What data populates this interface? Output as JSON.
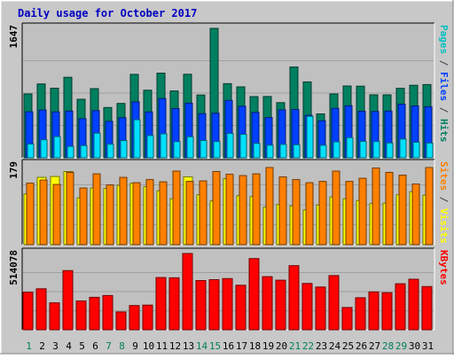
{
  "chart_data": {
    "type": "bar",
    "title": "Daily usage for October 2017",
    "categories": [
      "1",
      "2",
      "3",
      "4",
      "5",
      "6",
      "7",
      "8",
      "9",
      "10",
      "11",
      "12",
      "13",
      "14",
      "15",
      "16",
      "17",
      "18",
      "19",
      "20",
      "21",
      "22",
      "23",
      "24",
      "25",
      "26",
      "27",
      "28",
      "29",
      "30",
      "31"
    ],
    "weekend_days": [
      "1",
      "7",
      "8",
      "14",
      "15",
      "21",
      "22",
      "28",
      "29"
    ],
    "panels": [
      {
        "id": "hits",
        "ymax_label": "1647",
        "ymax": 1647,
        "legend": [
          {
            "text": "Pages",
            "color": "#00c0c0"
          },
          {
            "text": " / ",
            "color": "#404040"
          },
          {
            "text": "Files",
            "color": "#0040ff"
          },
          {
            "text": " / ",
            "color": "#404040"
          },
          {
            "text": "Hits",
            "color": "#008060"
          }
        ],
        "series": [
          {
            "name": "Hits",
            "color": "#008060",
            "values": [
              812,
              940,
              886,
              1024,
              745,
              880,
              640,
              692,
              1061,
              860,
              1077,
              851,
              1063,
              799,
              1647,
              943,
              902,
              778,
              780,
              702,
              1155,
              966,
              558,
              812,
              914,
              911,
              801,
              801,
              884,
              923,
              932
            ]
          },
          {
            "name": "Files",
            "color": "#0040ff",
            "values": [
              585,
              608,
              584,
              595,
              497,
              600,
              464,
              510,
              712,
              583,
              754,
              626,
              695,
              562,
              567,
              730,
              656,
              578,
              512,
              610,
              615,
              540,
              471,
              630,
              662,
              592,
              589,
              595,
              682,
              660,
              650
            ]
          },
          {
            "name": "Pages",
            "color": "#00e0ff",
            "values": [
              175,
              229,
              270,
              144,
              156,
              312,
              173,
              219,
              484,
              283,
              305,
              205,
              267,
              220,
              206,
              309,
              298,
              183,
              160,
              170,
              166,
              528,
              159,
              203,
              256,
              209,
              207,
              188,
              238,
              197,
              187
            ]
          }
        ]
      },
      {
        "id": "visits",
        "ymax_label": "179",
        "ymax": 179,
        "legend": [
          {
            "text": "Sites",
            "color": "#ff8000"
          },
          {
            "text": " / ",
            "color": "#404040"
          },
          {
            "text": "Visits",
            "color": "#ffff00"
          }
        ],
        "series": [
          {
            "name": "Visits",
            "color": "#ffff00",
            "values": [
              114,
              151,
              153,
              164,
              105,
              127,
              126,
              133,
              138,
              130,
              121,
              103,
              152,
              112,
              98,
              148,
              110,
              108,
              84,
              90,
              87,
              78,
              89,
              107,
              103,
              99,
              92,
              93,
              112,
              119,
              111
            ]
          },
          {
            "name": "Sites",
            "color": "#ff8000",
            "values": [
              138,
              145,
              135,
              162,
              127,
              159,
              134,
              151,
              139,
              146,
              141,
              165,
              142,
              143,
              164,
              158,
              155,
              159,
              173,
              152,
              146,
              139,
              142,
              165,
              142,
              149,
              172,
              162,
              156,
              136,
              173
            ]
          }
        ]
      },
      {
        "id": "kbytes",
        "ymax_label": "514078",
        "ymax": 514078,
        "legend": [
          {
            "text": "KBytes",
            "color": "#ff0000"
          }
        ],
        "series": [
          {
            "name": "KBytes",
            "color": "#ff0000",
            "values": [
              253000,
              276000,
              182000,
              399000,
              194000,
              219000,
              231000,
              120000,
              163000,
              166000,
              352000,
              350000,
              514078,
              332000,
              338000,
              345000,
              300000,
              480000,
              358000,
              334000,
              432000,
              312000,
              288000,
              365000,
              150000,
              216000,
              255000,
              250000,
              310000,
              341000,
              291000
            ]
          }
        ]
      }
    ]
  }
}
